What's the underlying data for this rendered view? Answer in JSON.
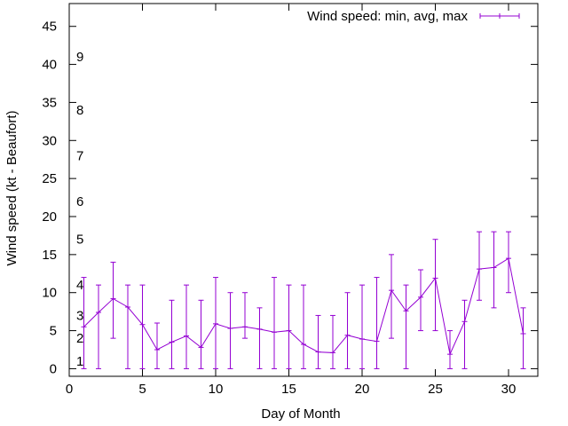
{
  "chart_data": {
    "type": "line",
    "title": "",
    "xlabel": "Day of Month",
    "ylabel": "Wind speed (kt - Beaufort)",
    "xlim": [
      0,
      32
    ],
    "ylim": [
      -1,
      48
    ],
    "x_ticks": [
      0,
      5,
      10,
      15,
      20,
      25,
      30
    ],
    "y_ticks": [
      0,
      5,
      10,
      15,
      20,
      25,
      30,
      35,
      40,
      45
    ],
    "grid": false,
    "legend": {
      "label": "Wind speed: min, avg, max",
      "position": "top-right"
    },
    "color": "#9400d3",
    "beaufort_labels": [
      {
        "label": "1",
        "value": 1
      },
      {
        "label": "2",
        "value": 4
      },
      {
        "label": "3",
        "value": 7
      },
      {
        "label": "4",
        "value": 11
      },
      {
        "label": "5",
        "value": 17
      },
      {
        "label": "6",
        "value": 22
      },
      {
        "label": "7",
        "value": 28
      },
      {
        "label": "8",
        "value": 34
      },
      {
        "label": "9",
        "value": 41
      }
    ],
    "series": [
      {
        "name": "Wind speed: min, avg, max",
        "x": [
          1,
          2,
          3,
          4,
          5,
          6,
          7,
          8,
          9,
          10,
          11,
          12,
          13,
          14,
          15,
          16,
          17,
          18,
          19,
          20,
          21,
          22,
          23,
          24,
          25,
          26,
          27,
          28,
          29,
          30,
          31
        ],
        "avg": [
          5.5,
          7.4,
          9.2,
          8.1,
          5.8,
          2.5,
          3.5,
          4.3,
          2.8,
          5.9,
          5.3,
          5.5,
          5.2,
          4.8,
          5.0,
          3.2,
          2.2,
          2.1,
          4.4,
          3.9,
          3.6,
          10.3,
          7.6,
          9.4,
          11.9,
          1.9,
          6.2,
          13.1,
          13.3,
          14.5,
          4.6
        ],
        "min": [
          0,
          0,
          4,
          0,
          0,
          0,
          0,
          0,
          0,
          0,
          0,
          4,
          0,
          0,
          0,
          0,
          0,
          0,
          0,
          0,
          0,
          4,
          0,
          5,
          5,
          0,
          0,
          9,
          8,
          10,
          0
        ],
        "max": [
          12,
          11,
          14,
          11,
          11,
          6,
          9,
          11,
          9,
          12,
          10,
          10,
          8,
          12,
          11,
          11,
          7,
          7,
          10,
          11,
          12,
          15,
          11,
          13,
          17,
          5,
          9,
          18,
          18,
          18,
          8
        ]
      }
    ]
  }
}
